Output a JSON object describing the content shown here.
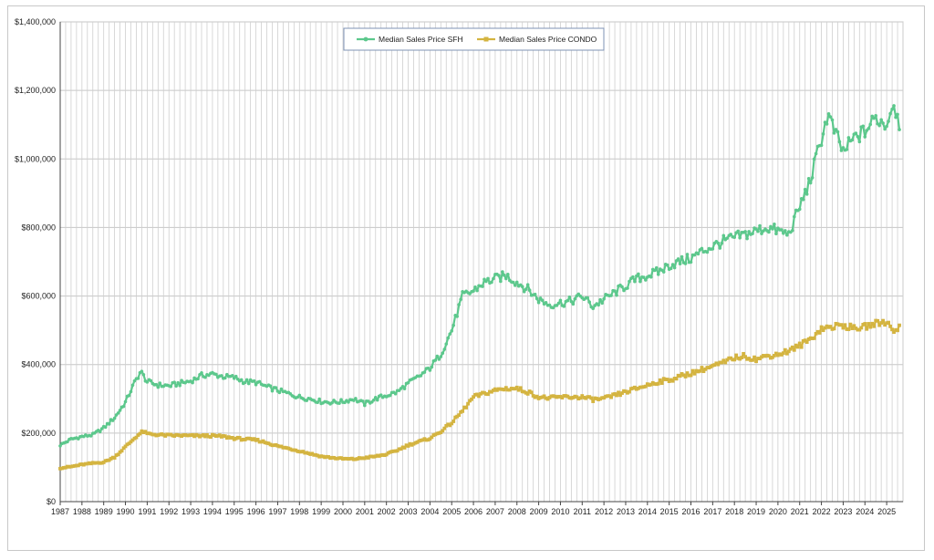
{
  "chart_data": {
    "type": "line",
    "title": "",
    "xlabel": "",
    "ylabel": "",
    "x_tick_labels": [
      "1987",
      "1988",
      "1989",
      "1990",
      "1991",
      "1992",
      "1993",
      "1994",
      "1995",
      "1996",
      "1997",
      "1998",
      "1999",
      "2000",
      "2001",
      "2002",
      "2003",
      "2004",
      "2005",
      "2006",
      "2007",
      "2008",
      "2009",
      "2010",
      "2011",
      "2012",
      "2013",
      "2014",
      "2015",
      "2016",
      "2017",
      "2018",
      "2019",
      "2020",
      "2021",
      "2022",
      "2023",
      "2024",
      "2025"
    ],
    "y_tick_labels": [
      "$0",
      "$200,000",
      "$400,000",
      "$600,000",
      "$800,000",
      "$1,000,000",
      "$1,200,000",
      "$1,400,000"
    ],
    "xlim": [
      1987.0,
      2025.75
    ],
    "ylim": [
      0,
      1400000
    ],
    "grid": true,
    "legend_position": "top-center",
    "series": [
      {
        "name": "Median Sales Price SFH",
        "color": "#5cc88c",
        "x": [
          1987.0,
          1987.5,
          1988.0,
          1988.5,
          1989.0,
          1989.5,
          1990.0,
          1990.4,
          1990.7,
          1991.0,
          1991.5,
          1992.0,
          1992.5,
          1993.0,
          1993.5,
          1994.0,
          1994.5,
          1995.0,
          1995.5,
          1996.0,
          1996.5,
          1997.0,
          1997.5,
          1998.0,
          1998.5,
          1999.0,
          1999.5,
          2000.0,
          2000.5,
          2001.0,
          2001.5,
          2002.0,
          2002.5,
          2003.0,
          2003.5,
          2004.0,
          2004.5,
          2005.0,
          2005.5,
          2006.0,
          2006.5,
          2007.0,
          2007.5,
          2008.0,
          2008.5,
          2009.0,
          2009.5,
          2010.0,
          2010.5,
          2011.0,
          2011.5,
          2012.0,
          2012.5,
          2013.0,
          2013.5,
          2014.0,
          2014.5,
          2015.0,
          2015.5,
          2016.0,
          2016.5,
          2017.0,
          2017.5,
          2018.0,
          2018.5,
          2019.0,
          2019.5,
          2020.0,
          2020.5,
          2021.0,
          2021.5,
          2022.0,
          2022.3,
          2022.6,
          2023.0,
          2023.5,
          2024.0,
          2024.5,
          2025.0,
          2025.3,
          2025.6
        ],
        "y": [
          165000,
          182000,
          190000,
          195000,
          215000,
          245000,
          290000,
          345000,
          380000,
          350000,
          340000,
          338000,
          345000,
          352000,
          368000,
          372000,
          365000,
          362000,
          350000,
          348000,
          335000,
          325000,
          315000,
          305000,
          300000,
          292000,
          290000,
          292000,
          300000,
          285000,
          300000,
          310000,
          320000,
          345000,
          365000,
          390000,
          430000,
          500000,
          600000,
          615000,
          640000,
          650000,
          660000,
          640000,
          620000,
          590000,
          575000,
          580000,
          585000,
          600000,
          570000,
          590000,
          610000,
          630000,
          650000,
          660000,
          670000,
          690000,
          700000,
          710000,
          730000,
          745000,
          760000,
          770000,
          780000,
          790000,
          800000,
          790000,
          780000,
          860000,
          940000,
          1060000,
          1130000,
          1080000,
          1020000,
          1060000,
          1080000,
          1120000,
          1100000,
          1170000,
          1100000
        ]
      },
      {
        "name": "Median Sales Price CONDO",
        "color": "#d4b440",
        "x": [
          1987.0,
          1987.5,
          1988.0,
          1988.5,
          1989.0,
          1989.5,
          1990.0,
          1990.5,
          1990.8,
          1991.0,
          1991.5,
          1992.0,
          1992.5,
          1993.0,
          1993.5,
          1994.0,
          1994.5,
          1995.0,
          1995.5,
          1996.0,
          1996.5,
          1997.0,
          1997.5,
          1998.0,
          1998.5,
          1999.0,
          1999.5,
          2000.0,
          2000.5,
          2001.0,
          2001.5,
          2002.0,
          2002.5,
          2003.0,
          2003.5,
          2004.0,
          2004.5,
          2005.0,
          2005.5,
          2006.0,
          2006.5,
          2007.0,
          2007.5,
          2008.0,
          2008.5,
          2009.0,
          2009.5,
          2010.0,
          2010.5,
          2011.0,
          2011.5,
          2012.0,
          2012.5,
          2013.0,
          2013.5,
          2014.0,
          2014.5,
          2015.0,
          2015.5,
          2016.0,
          2016.5,
          2017.0,
          2017.5,
          2018.0,
          2018.5,
          2019.0,
          2019.5,
          2020.0,
          2020.5,
          2021.0,
          2021.5,
          2022.0,
          2022.5,
          2023.0,
          2023.5,
          2024.0,
          2024.5,
          2025.0,
          2025.3,
          2025.6
        ],
        "y": [
          98000,
          102000,
          108000,
          112000,
          115000,
          130000,
          160000,
          190000,
          205000,
          198000,
          195000,
          193000,
          193000,
          192000,
          192000,
          192000,
          190000,
          185000,
          182000,
          180000,
          172000,
          162000,
          155000,
          148000,
          140000,
          132000,
          128000,
          125000,
          124000,
          128000,
          132000,
          138000,
          150000,
          165000,
          175000,
          185000,
          205000,
          230000,
          265000,
          305000,
          315000,
          325000,
          330000,
          330000,
          320000,
          305000,
          302000,
          305000,
          305000,
          305000,
          298000,
          300000,
          310000,
          320000,
          330000,
          340000,
          350000,
          355000,
          365000,
          375000,
          385000,
          395000,
          405000,
          420000,
          425000,
          415000,
          425000,
          430000,
          440000,
          455000,
          475000,
          505000,
          510000,
          515000,
          505000,
          510000,
          520000,
          525000,
          500000,
          510000
        ]
      }
    ]
  }
}
